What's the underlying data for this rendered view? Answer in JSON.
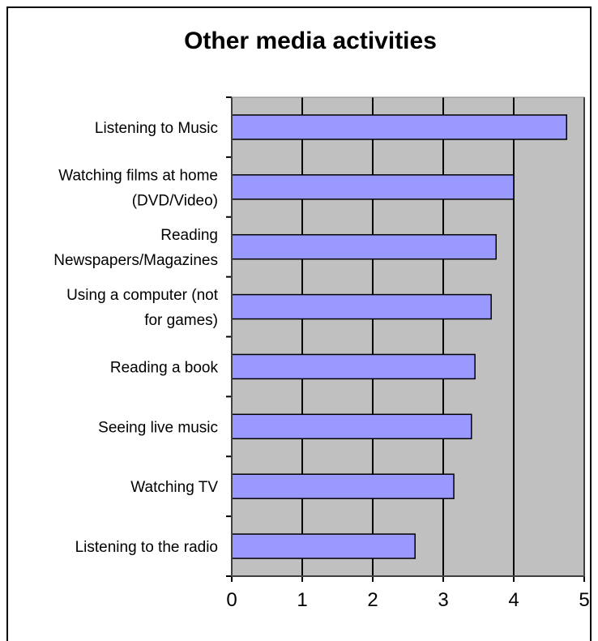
{
  "chart_data": {
    "type": "bar",
    "orientation": "horizontal",
    "title": "Other media activities",
    "categories": [
      [
        "Listening to Music"
      ],
      [
        "Watching films at home",
        "(DVD/Video)"
      ],
      [
        "Reading",
        "Newspapers/Magazines"
      ],
      [
        "Using a computer (not",
        "for games)"
      ],
      [
        "Reading a book"
      ],
      [
        "Seeing live music"
      ],
      [
        "Watching TV"
      ],
      [
        "Listening to the radio"
      ]
    ],
    "values": [
      4.75,
      4.0,
      3.75,
      3.68,
      3.45,
      3.4,
      3.15,
      2.6
    ],
    "xlim": [
      0,
      5
    ],
    "xticks": [
      "0",
      "1",
      "2",
      "3",
      "4",
      "5"
    ],
    "grid": true,
    "colors": {
      "bar": "#9999ff",
      "plot_bg": "#c0c0c0",
      "grid": "#000000"
    }
  }
}
